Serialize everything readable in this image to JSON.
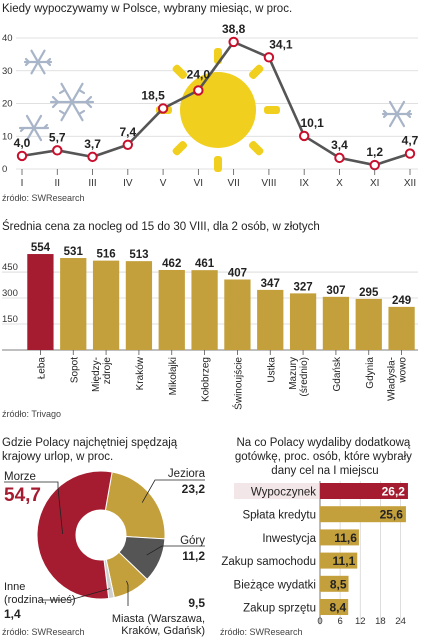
{
  "colors": {
    "gold": "#c4a03c",
    "red": "#a51c30",
    "gray": "#555555",
    "lightgray": "#cfcfcf",
    "line": "#555555",
    "marker_stroke": "#c8102e",
    "snow": "#a8b5c8",
    "sun": "#f0cf1e",
    "text": "#222222"
  },
  "chart_data": [
    {
      "type": "line",
      "title": "Kiedy wypoczywamy w Polsce, wybrany miesiąc, w proc.",
      "categories": [
        "I",
        "II",
        "III",
        "IV",
        "V",
        "VI",
        "VII",
        "VIII",
        "IX",
        "X",
        "XI",
        "XII"
      ],
      "values": [
        4.0,
        5.7,
        3.7,
        7.4,
        18.5,
        24.0,
        38.8,
        34.1,
        10.1,
        3.4,
        1.2,
        4.7
      ],
      "value_labels": [
        "4,0",
        "5,7",
        "3,7",
        "7,4",
        "18,5",
        "24,0",
        "38,8",
        "34,1",
        "10,1",
        "3,4",
        "1,2",
        "4,7"
      ],
      "yticks": [
        0,
        10,
        20,
        30,
        40
      ],
      "ylim": [
        0,
        40
      ],
      "grid": true,
      "source": "źródło: SWResearch",
      "decorations": [
        "snowflake-icon",
        "sun-icon"
      ]
    },
    {
      "type": "bar",
      "title": "Średnia cena za nocleg od 15 do 30 VIII, dla 2 osób, w złotych",
      "categories": [
        "Łeba",
        "Sopot",
        "Między-\nzdroje",
        "Kraków",
        "Mikołajki",
        "Kołobrzeg",
        "Świnoujście",
        "Ustka",
        "Mazury\n(średnio)",
        "Gdańsk",
        "Gdynia",
        "Władysła-\nwowo"
      ],
      "values": [
        554,
        531,
        516,
        513,
        462,
        461,
        407,
        347,
        327,
        307,
        295,
        249
      ],
      "value_labels": [
        "554",
        "531",
        "516",
        "513",
        "462",
        "461",
        "407",
        "347",
        "327",
        "307",
        "295",
        "249"
      ],
      "highlight_index": 0,
      "yticks": [
        0,
        150,
        300,
        450
      ],
      "ylim": [
        0,
        560
      ],
      "grid": true,
      "source": "źródło: Trivago"
    },
    {
      "type": "pie",
      "title": "Gdzie Polacy najchętniej spędzają krajowy urlop, w proc.",
      "labels": [
        "Morze",
        "Jeziora",
        "Góry",
        "Miasta (Warszawa, Kraków, Gdańsk)",
        "Inne (rodzina, wieś)"
      ],
      "values": [
        54.7,
        23.2,
        11.2,
        9.5,
        1.4
      ],
      "value_labels": [
        "54,7",
        "23,2",
        "11,2",
        "9,5",
        "1,4"
      ],
      "slice_colors": [
        "#a51c30",
        "#c4a03c",
        "#555555",
        "#c4a03c",
        "#cfcfcf"
      ],
      "donut": true,
      "source": "źródło: SWResearch"
    },
    {
      "type": "bar",
      "orientation": "horizontal",
      "title": "Na co Polacy wydaliby dodatkową gotówkę, proc. osób, które wybrały dany cel na I miejscu",
      "categories": [
        "Wypoczynek",
        "Spłata kredytu",
        "Inwestycja",
        "Zakup samochodu",
        "Bieżące wydatki",
        "Zakup sprzętu"
      ],
      "values": [
        26.2,
        25.6,
        11.6,
        11.1,
        8.5,
        8.4
      ],
      "value_labels": [
        "26,2",
        "25,6",
        "11,6",
        "11,1",
        "8,5",
        "8,4"
      ],
      "highlight_index": 0,
      "xticks": [
        0,
        6,
        12,
        18,
        24
      ],
      "xlim": [
        0,
        28
      ],
      "grid": true,
      "source": "źródło: SWResearch"
    }
  ]
}
